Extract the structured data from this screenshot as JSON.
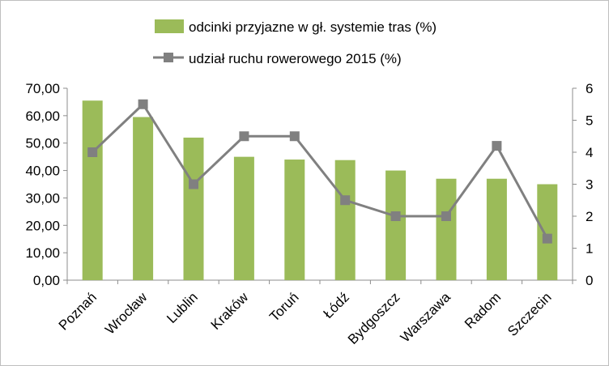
{
  "chart_data": {
    "type": "bar",
    "categories": [
      "Poznań",
      "Wrocław",
      "Lublin",
      "Kraków",
      "Toruń",
      "Łódź",
      "Bydgoszcz",
      "Warszawa",
      "Radom",
      "Szczecin"
    ],
    "series": [
      {
        "name": "odcinki przyjazne w gł. systemie tras (%)",
        "type": "bar",
        "axis": "left",
        "color": "#9bbb59",
        "values": [
          65.5,
          59.5,
          52.0,
          45.0,
          44.0,
          43.8,
          40.0,
          37.0,
          37.0,
          35.0
        ]
      },
      {
        "name": "udział ruchu rowerowego 2015 (%)",
        "type": "line",
        "axis": "right",
        "color": "#808080",
        "marker": "square",
        "values": [
          4.0,
          5.5,
          3.0,
          4.5,
          4.5,
          2.5,
          2.0,
          2.0,
          4.2,
          1.3
        ]
      }
    ],
    "y_left": {
      "ylim": [
        0,
        70
      ],
      "ticks": [
        "0,00",
        "10,00",
        "20,00",
        "30,00",
        "40,00",
        "50,00",
        "60,00",
        "70,00"
      ]
    },
    "y_right": {
      "ylim": [
        0,
        6
      ],
      "ticks": [
        "0",
        "1",
        "2",
        "3",
        "4",
        "5",
        "6"
      ]
    },
    "title": "",
    "xlabel": "",
    "ylabel": "",
    "grid": false,
    "legend_position": "top"
  }
}
